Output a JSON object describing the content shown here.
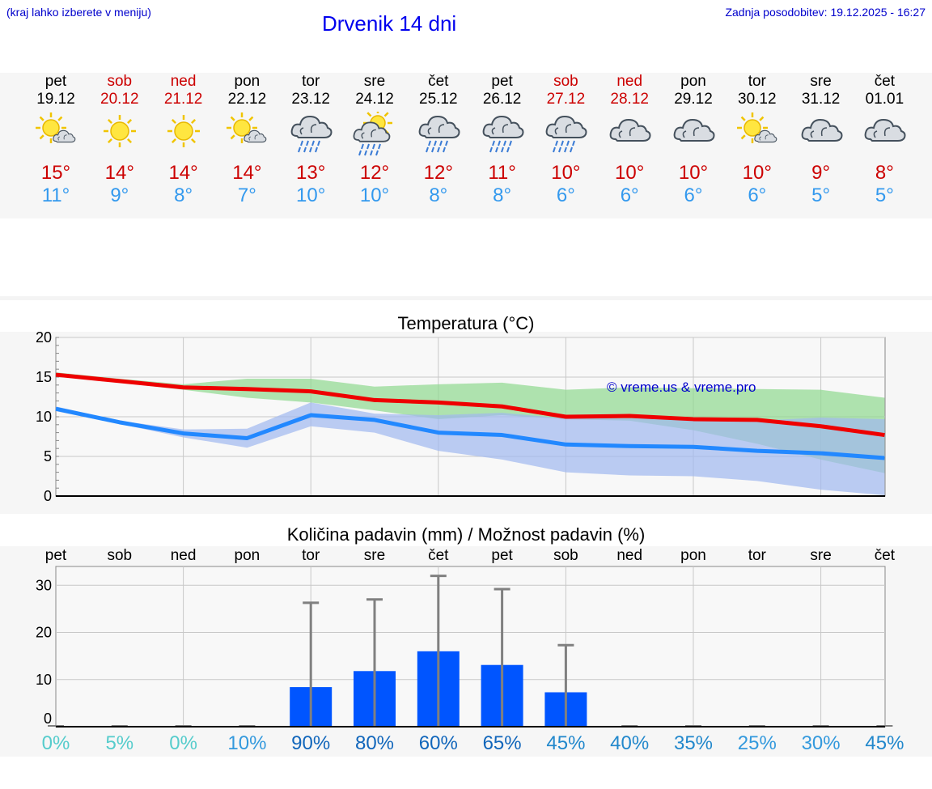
{
  "header": {
    "menu_hint": "(kraj lahko izberete v meniju)",
    "title": "Drvenik 14 dni",
    "updated": "Zadnja posodobitev: 19.12.2025 - 16:27"
  },
  "days": [
    {
      "name": "pet",
      "date": "19.12",
      "weekend": false,
      "icon": "sun-cloud",
      "max": "15°",
      "min": "11°"
    },
    {
      "name": "sob",
      "date": "20.12",
      "weekend": true,
      "icon": "sun",
      "max": "14°",
      "min": "9°"
    },
    {
      "name": "ned",
      "date": "21.12",
      "weekend": true,
      "icon": "sun",
      "max": "14°",
      "min": "8°"
    },
    {
      "name": "pon",
      "date": "22.12",
      "weekend": false,
      "icon": "sun-cloud",
      "max": "14°",
      "min": "7°"
    },
    {
      "name": "tor",
      "date": "23.12",
      "weekend": false,
      "icon": "cloud-rain",
      "max": "13°",
      "min": "10°"
    },
    {
      "name": "sre",
      "date": "24.12",
      "weekend": false,
      "icon": "sun-cloud-rain",
      "max": "12°",
      "min": "10°"
    },
    {
      "name": "čet",
      "date": "25.12",
      "weekend": false,
      "icon": "cloud-rain",
      "max": "12°",
      "min": "8°"
    },
    {
      "name": "pet",
      "date": "26.12",
      "weekend": false,
      "icon": "cloud-rain",
      "max": "11°",
      "min": "8°"
    },
    {
      "name": "sob",
      "date": "27.12",
      "weekend": true,
      "icon": "cloud-rain",
      "max": "10°",
      "min": "6°"
    },
    {
      "name": "ned",
      "date": "28.12",
      "weekend": true,
      "icon": "cloud",
      "max": "10°",
      "min": "6°"
    },
    {
      "name": "pon",
      "date": "29.12",
      "weekend": false,
      "icon": "cloud",
      "max": "10°",
      "min": "6°"
    },
    {
      "name": "tor",
      "date": "30.12",
      "weekend": false,
      "icon": "sun-cloud",
      "max": "10°",
      "min": "6°"
    },
    {
      "name": "sre",
      "date": "31.12",
      "weekend": false,
      "icon": "cloud",
      "max": "9°",
      "min": "5°"
    },
    {
      "name": "čet",
      "date": "01.01",
      "weekend": false,
      "icon": "cloud",
      "max": "8°",
      "min": "5°"
    }
  ],
  "chart_data": [
    {
      "type": "line",
      "title": "Temperatura (°C)",
      "watermark": "© vreme.us & vreme.pro",
      "ylim": [
        0,
        20
      ],
      "yticks": [
        "0",
        "5",
        "10",
        "15",
        "20"
      ],
      "x": [
        0,
        1,
        2,
        3,
        4,
        5,
        6,
        7,
        8,
        9,
        10,
        11,
        12,
        13
      ],
      "series": [
        {
          "name": "max",
          "color": "#ee0000",
          "values": [
            15.3,
            14.5,
            13.7,
            13.5,
            13.2,
            12.1,
            11.8,
            11.3,
            10.0,
            10.1,
            9.7,
            9.6,
            8.8,
            7.7
          ]
        },
        {
          "name": "min",
          "color": "#2288ff",
          "values": [
            11.0,
            9.3,
            7.9,
            7.3,
            10.2,
            9.6,
            8.0,
            7.7,
            6.5,
            6.3,
            6.2,
            5.7,
            5.4,
            4.8
          ]
        }
      ],
      "bands": [
        {
          "name": "max-range",
          "color": "#8fd98f",
          "upper": [
            15.6,
            14.8,
            14.1,
            14.8,
            14.8,
            13.8,
            14.1,
            14.3,
            13.4,
            13.7,
            13.6,
            13.5,
            13.4,
            12.4
          ],
          "lower": [
            15.1,
            14.3,
            13.4,
            12.4,
            11.8,
            10.8,
            9.7,
            10.2,
            9.7,
            9.5,
            8.3,
            6.6,
            4.6,
            2.9
          ]
        },
        {
          "name": "min-range",
          "color": "#a0b8f0",
          "upper": [
            11.3,
            9.5,
            8.4,
            8.5,
            11.8,
            10.4,
            10.2,
            10.5,
            9.8,
            9.8,
            9.7,
            9.5,
            9.9,
            9.7
          ],
          "lower": [
            10.7,
            9.1,
            7.4,
            6.1,
            8.8,
            8.0,
            5.7,
            4.6,
            3.0,
            2.6,
            2.5,
            1.9,
            0.8,
            0.1
          ]
        }
      ]
    },
    {
      "type": "bar",
      "title": "Količina padavin (mm) / Možnost padavin (%)",
      "ylim": [
        0,
        34
      ],
      "yticks": [
        "0",
        "10",
        "20",
        "30"
      ],
      "categories": [
        "pet",
        "sob",
        "ned",
        "pon",
        "tor",
        "sre",
        "čet",
        "pet",
        "sob",
        "ned",
        "pon",
        "tor",
        "sre",
        "čet"
      ],
      "values": [
        0,
        0,
        0,
        0,
        8.4,
        11.8,
        16.0,
        13.1,
        7.3,
        0,
        0,
        0,
        0,
        0
      ],
      "error_max": [
        0,
        0,
        0,
        0,
        26.3,
        27.0,
        32.0,
        29.2,
        17.3,
        0,
        0,
        0,
        0,
        0
      ],
      "probability": [
        "0%",
        "5%",
        "0%",
        "10%",
        "90%",
        "80%",
        "60%",
        "65%",
        "45%",
        "40%",
        "35%",
        "25%",
        "30%",
        "45%"
      ],
      "probability_colors": [
        "#55cccc",
        "#55cccc",
        "#55cccc",
        "#3399dd",
        "#1166bb",
        "#1166bb",
        "#1166bb",
        "#1166bb",
        "#2288cc",
        "#2288cc",
        "#2288cc",
        "#3399dd",
        "#3399dd",
        "#2288cc"
      ],
      "bar_color": "#0055ff",
      "error_color": "#808080"
    }
  ]
}
